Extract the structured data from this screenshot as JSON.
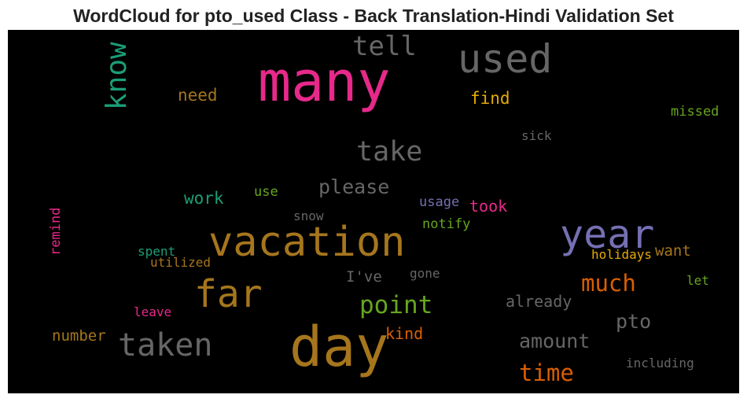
{
  "title": "WordCloud for pto_used Class - Back Translation-Hindi Validation Set",
  "background": "#000000",
  "words": [
    {
      "text": "many",
      "color": "#e7298a"
    },
    {
      "text": "used",
      "color": "#666666"
    },
    {
      "text": "tell",
      "color": "#666666"
    },
    {
      "text": "know",
      "color": "#1b9e77"
    },
    {
      "text": "need",
      "color": "#a6761d"
    },
    {
      "text": "find",
      "color": "#e6ab02"
    },
    {
      "text": "missed",
      "color": "#66a61e"
    },
    {
      "text": "sick",
      "color": "#666666"
    },
    {
      "text": "take",
      "color": "#666666"
    },
    {
      "text": "please",
      "color": "#666666"
    },
    {
      "text": "work",
      "color": "#1b9e77"
    },
    {
      "text": "use",
      "color": "#66a61e"
    },
    {
      "text": "usage",
      "color": "#7570b3"
    },
    {
      "text": "took",
      "color": "#e7298a"
    },
    {
      "text": "snow",
      "color": "#666666"
    },
    {
      "text": "notify",
      "color": "#66a61e"
    },
    {
      "text": "remind",
      "color": "#e7298a"
    },
    {
      "text": "vacation",
      "color": "#a6761d"
    },
    {
      "text": "year",
      "color": "#7570b3"
    },
    {
      "text": "spent",
      "color": "#1b9e77"
    },
    {
      "text": "utilized",
      "color": "#a6761d"
    },
    {
      "text": "holidays",
      "color": "#e6ab02"
    },
    {
      "text": "want",
      "color": "#a6761d"
    },
    {
      "text": "I've",
      "color": "#666666"
    },
    {
      "text": "gone",
      "color": "#666666"
    },
    {
      "text": "far",
      "color": "#a6761d"
    },
    {
      "text": "much",
      "color": "#d95f02"
    },
    {
      "text": "let",
      "color": "#66a61e"
    },
    {
      "text": "point",
      "color": "#66a61e"
    },
    {
      "text": "already",
      "color": "#666666"
    },
    {
      "text": "leave",
      "color": "#e7298a"
    },
    {
      "text": "pto",
      "color": "#666666"
    },
    {
      "text": "number",
      "color": "#a6761d"
    },
    {
      "text": "kind",
      "color": "#d95f02"
    },
    {
      "text": "taken",
      "color": "#666666"
    },
    {
      "text": "day",
      "color": "#a6761d"
    },
    {
      "text": "amount",
      "color": "#666666"
    },
    {
      "text": "including",
      "color": "#666666"
    },
    {
      "text": "time",
      "color": "#d95f02"
    }
  ]
}
